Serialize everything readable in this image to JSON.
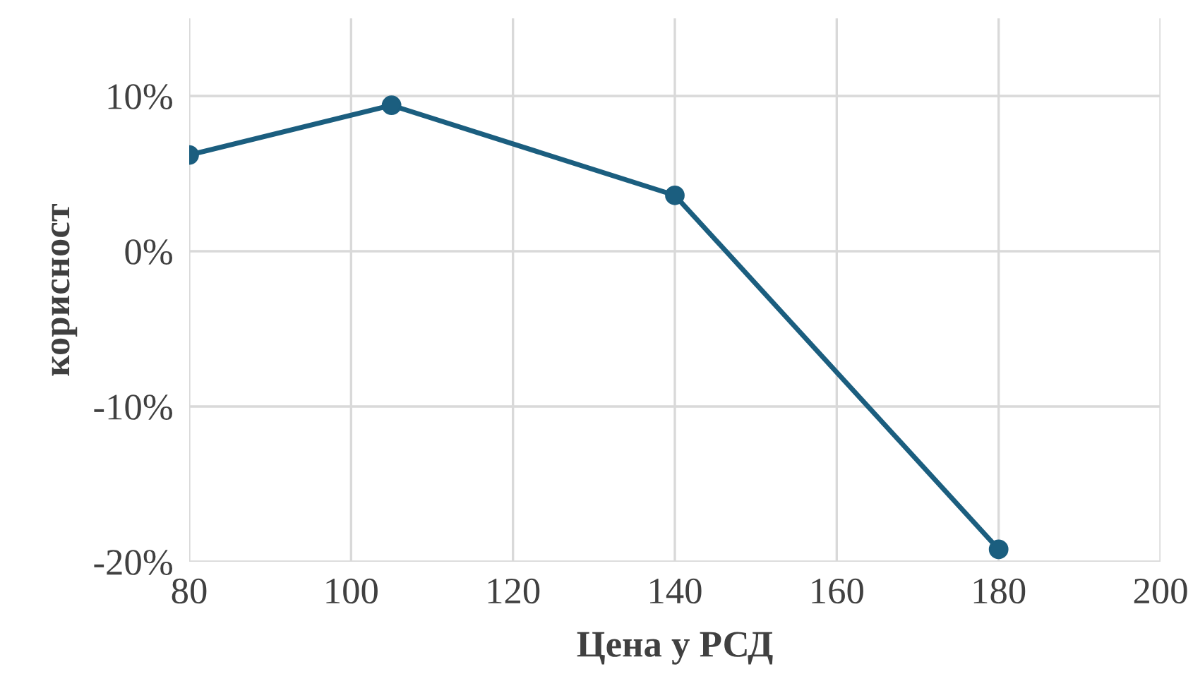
{
  "chart_data": {
    "type": "line",
    "xlabel": "Цена у РСД",
    "ylabel": "корисност",
    "x": [
      80,
      105,
      140,
      180
    ],
    "series": [
      {
        "color": "#1b5e7f",
        "values": [
          6.2,
          9.4,
          3.6,
          -19.2
        ]
      }
    ],
    "xlim": [
      80,
      200
    ],
    "xticks": [
      80,
      100,
      120,
      140,
      160,
      180,
      200
    ],
    "ylim": [
      -20,
      15
    ],
    "yticks": [
      {
        "value": -20,
        "label": "-20%"
      },
      {
        "value": -10,
        "label": "-10%"
      },
      {
        "value": 0,
        "label": "0%"
      },
      {
        "value": 10,
        "label": "10%"
      }
    ],
    "grid": true,
    "marker": "circle",
    "line_style": "solid"
  }
}
